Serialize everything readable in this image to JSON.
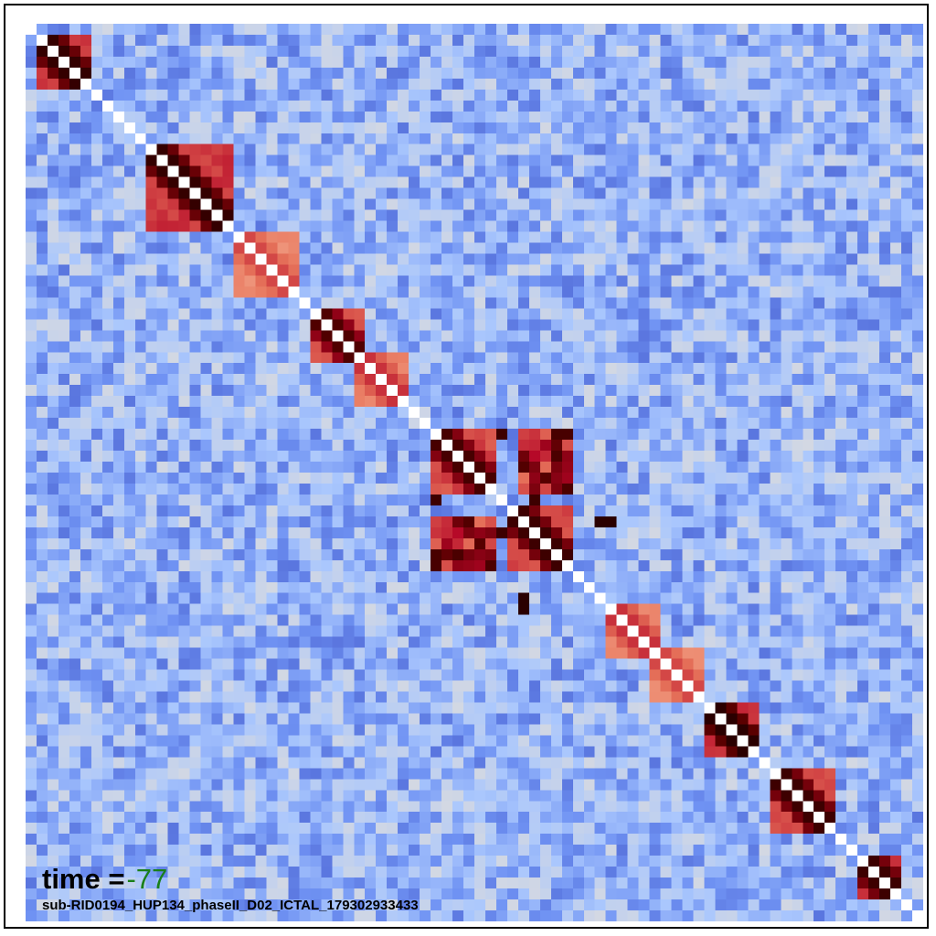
{
  "chart_data": {
    "type": "heatmap",
    "rows": 82,
    "cols": 82,
    "annotation_time_prefix": "time =",
    "annotation_time_value": "-77",
    "caption": "sub-RID0194_HUP134_phaseII_D02_ICTAL_179302933433",
    "colormap": [
      "#3b4cc0",
      "#6f92f3",
      "#aac7fd",
      "#dddcdc",
      "#f7b89c",
      "#e7745b",
      "#b40426",
      "#5a0000",
      "#2a0000"
    ],
    "value_range": [
      -1,
      1
    ],
    "diagonal_value": 0,
    "blocks": [
      {
        "start": 1,
        "end": 5,
        "strength": 0.95
      },
      {
        "start": 11,
        "end": 18,
        "strength": 0.95
      },
      {
        "start": 19,
        "end": 24,
        "strength": 0.35
      },
      {
        "start": 26,
        "end": 30,
        "strength": 0.8
      },
      {
        "start": 30,
        "end": 34,
        "strength": 0.4
      },
      {
        "start": 37,
        "end": 42,
        "strength": 0.85
      },
      {
        "start": 44,
        "end": 49,
        "strength": 0.9
      },
      {
        "start": 53,
        "end": 57,
        "strength": 0.4
      },
      {
        "start": 57,
        "end": 61,
        "strength": 0.35
      },
      {
        "start": 62,
        "end": 66,
        "strength": 1.0
      },
      {
        "start": 68,
        "end": 73,
        "strength": 0.9
      },
      {
        "start": 76,
        "end": 79,
        "strength": 0.9
      }
    ],
    "cross_blocks": [
      {
        "r0": 37,
        "r1": 42,
        "c0": 45,
        "c1": 49,
        "strength": 0.85
      }
    ],
    "isolated_cells": [
      {
        "row": 45,
        "col": 52,
        "strength": 1.0
      },
      {
        "row": 53,
        "col": 45,
        "strength": 1.0
      },
      {
        "row": 37,
        "col": 43,
        "strength": 0.9
      },
      {
        "row": 46,
        "col": 43,
        "strength": 0.9
      }
    ]
  }
}
